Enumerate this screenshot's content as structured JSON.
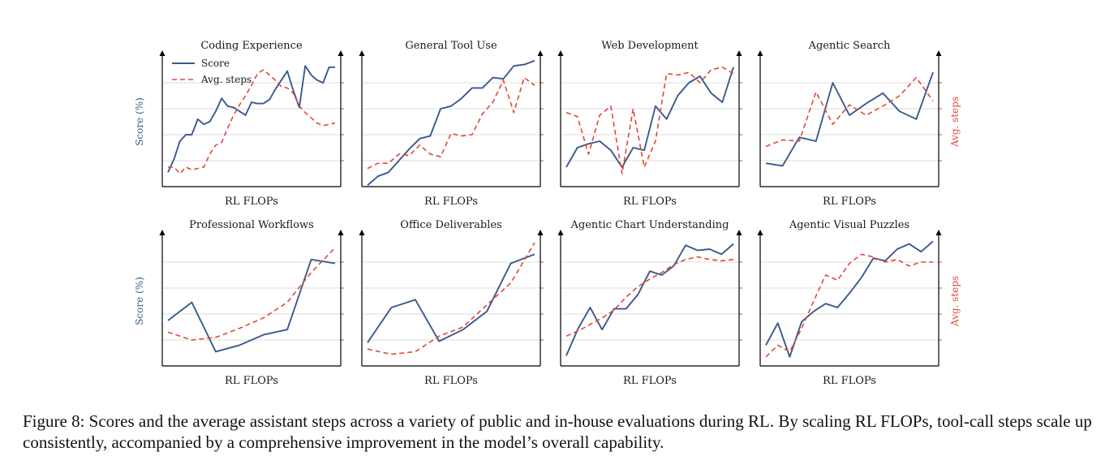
{
  "colors": {
    "score": "#3a5a8c",
    "steps": "#e0493a",
    "grid": "#dcdcdc",
    "axis": "#000000"
  },
  "legend": {
    "score_label": "Score",
    "steps_label": "Avg. steps"
  },
  "caption": "Figure 8: Scores and the average assistant steps across a variety of public and in-house evaluations during RL. By scaling RL FLOPs, tool-call steps scale up consistently, accompanied by a comprehensive improvement in the model’s overall capability.",
  "chart_data": [
    {
      "type": "line",
      "title": "Coding Experience",
      "xlabel": "RL FLOPs",
      "ylabel_left": "Score (%)",
      "ylabel_right": "",
      "legend": "top-left",
      "grid": true,
      "series": [
        {
          "name": "Score",
          "style": "solid",
          "values": [
            0.11,
            0.21,
            0.35,
            0.4,
            0.4,
            0.52,
            0.48,
            0.5,
            0.58,
            0.68,
            0.62,
            0.61,
            0.58,
            0.55,
            0.65,
            0.64,
            0.64,
            0.67,
            0.75,
            0.82,
            0.89,
            0.74,
            0.61,
            0.93,
            0.86,
            0.82,
            0.8,
            0.92,
            0.92
          ]
        },
        {
          "name": "Avg. steps",
          "style": "dashed",
          "values": [
            0.15,
            0.15,
            0.1,
            0.15,
            0.13,
            0.14,
            0.15,
            0.25,
            0.32,
            0.34,
            0.45,
            0.55,
            0.63,
            0.7,
            0.78,
            0.87,
            0.9,
            0.86,
            0.82,
            0.77,
            0.76,
            0.72,
            0.62,
            0.57,
            0.53,
            0.49,
            0.47,
            0.48,
            0.49
          ]
        }
      ]
    },
    {
      "type": "line",
      "title": "General Tool Use",
      "xlabel": "RL FLOPs",
      "ylabel_left": "",
      "ylabel_right": "",
      "grid": true,
      "series": [
        {
          "name": "Score",
          "style": "solid",
          "values": [
            0.01,
            0.08,
            0.11,
            0.2,
            0.29,
            0.37,
            0.39,
            0.6,
            0.62,
            0.68,
            0.76,
            0.76,
            0.84,
            0.83,
            0.93,
            0.94,
            0.97
          ]
        },
        {
          "name": "Avg. steps",
          "style": "dashed",
          "values": [
            0.14,
            0.18,
            0.18,
            0.25,
            0.24,
            0.32,
            0.25,
            0.23,
            0.41,
            0.39,
            0.4,
            0.56,
            0.65,
            0.82,
            0.57,
            0.84,
            0.78
          ]
        }
      ]
    },
    {
      "type": "line",
      "title": "Web Development",
      "xlabel": "RL FLOPs",
      "ylabel_left": "",
      "ylabel_right": "",
      "grid": true,
      "series": [
        {
          "name": "Score",
          "style": "solid",
          "values": [
            0.15,
            0.3,
            0.33,
            0.35,
            0.28,
            0.15,
            0.3,
            0.28,
            0.62,
            0.52,
            0.7,
            0.8,
            0.85,
            0.72,
            0.65,
            0.92
          ]
        },
        {
          "name": "Avg. steps",
          "style": "dashed",
          "values": [
            0.57,
            0.54,
            0.25,
            0.55,
            0.62,
            0.1,
            0.6,
            0.15,
            0.35,
            0.87,
            0.86,
            0.88,
            0.8,
            0.9,
            0.92,
            0.87
          ]
        }
      ]
    },
    {
      "type": "line",
      "title": "Agentic Search",
      "xlabel": "RL FLOPs",
      "ylabel_left": "",
      "ylabel_right": "Avg. steps",
      "grid": true,
      "series": [
        {
          "name": "Score",
          "style": "solid",
          "values": [
            0.18,
            0.16,
            0.38,
            0.35,
            0.8,
            0.55,
            0.64,
            0.72,
            0.58,
            0.52,
            0.88
          ]
        },
        {
          "name": "Avg. steps",
          "style": "dashed",
          "values": [
            0.31,
            0.36,
            0.35,
            0.73,
            0.48,
            0.63,
            0.55,
            0.62,
            0.7,
            0.84,
            0.66
          ]
        }
      ]
    },
    {
      "type": "line",
      "title": "Professional Workflows",
      "xlabel": "RL FLOPs",
      "ylabel_left": "Score (%)",
      "ylabel_right": "",
      "grid": true,
      "series": [
        {
          "name": "Score",
          "style": "solid",
          "values": [
            0.35,
            0.49,
            0.11,
            0.16,
            0.24,
            0.28,
            0.82,
            0.79
          ]
        },
        {
          "name": "Avg. steps",
          "style": "dashed",
          "values": [
            0.26,
            0.2,
            0.22,
            0.29,
            0.37,
            0.49,
            0.72,
            0.91
          ]
        }
      ]
    },
    {
      "type": "line",
      "title": "Office Deliverables",
      "xlabel": "RL FLOPs",
      "ylabel_left": "",
      "ylabel_right": "",
      "grid": true,
      "series": [
        {
          "name": "Score",
          "style": "solid",
          "values": [
            0.18,
            0.45,
            0.51,
            0.19,
            0.28,
            0.42,
            0.79,
            0.86
          ]
        },
        {
          "name": "Avg. steps",
          "style": "dashed",
          "values": [
            0.13,
            0.09,
            0.11,
            0.23,
            0.3,
            0.47,
            0.64,
            0.95
          ]
        }
      ]
    },
    {
      "type": "line",
      "title": "Agentic Chart Understanding",
      "xlabel": "RL FLOPs",
      "ylabel_left": "",
      "ylabel_right": "",
      "grid": true,
      "series": [
        {
          "name": "Score",
          "style": "solid",
          "values": [
            0.08,
            0.29,
            0.45,
            0.28,
            0.44,
            0.44,
            0.55,
            0.73,
            0.7,
            0.77,
            0.93,
            0.89,
            0.9,
            0.86,
            0.94
          ]
        },
        {
          "name": "Avg. steps",
          "style": "dashed",
          "values": [
            0.23,
            0.27,
            0.32,
            0.37,
            0.43,
            0.53,
            0.61,
            0.67,
            0.72,
            0.78,
            0.82,
            0.84,
            0.82,
            0.81,
            0.82
          ]
        }
      ]
    },
    {
      "type": "line",
      "title": "Agentic Visual Puzzles",
      "xlabel": "RL FLOPs",
      "ylabel_left": "",
      "ylabel_right": "Avg. steps",
      "grid": true,
      "series": [
        {
          "name": "Score",
          "style": "solid",
          "values": [
            0.16,
            0.33,
            0.07,
            0.34,
            0.42,
            0.48,
            0.45,
            0.56,
            0.68,
            0.83,
            0.81,
            0.9,
            0.94,
            0.88,
            0.96
          ]
        },
        {
          "name": "Avg. steps",
          "style": "dashed",
          "values": [
            0.07,
            0.16,
            0.11,
            0.29,
            0.5,
            0.7,
            0.66,
            0.79,
            0.86,
            0.84,
            0.8,
            0.82,
            0.77,
            0.8,
            0.8
          ]
        }
      ]
    }
  ]
}
